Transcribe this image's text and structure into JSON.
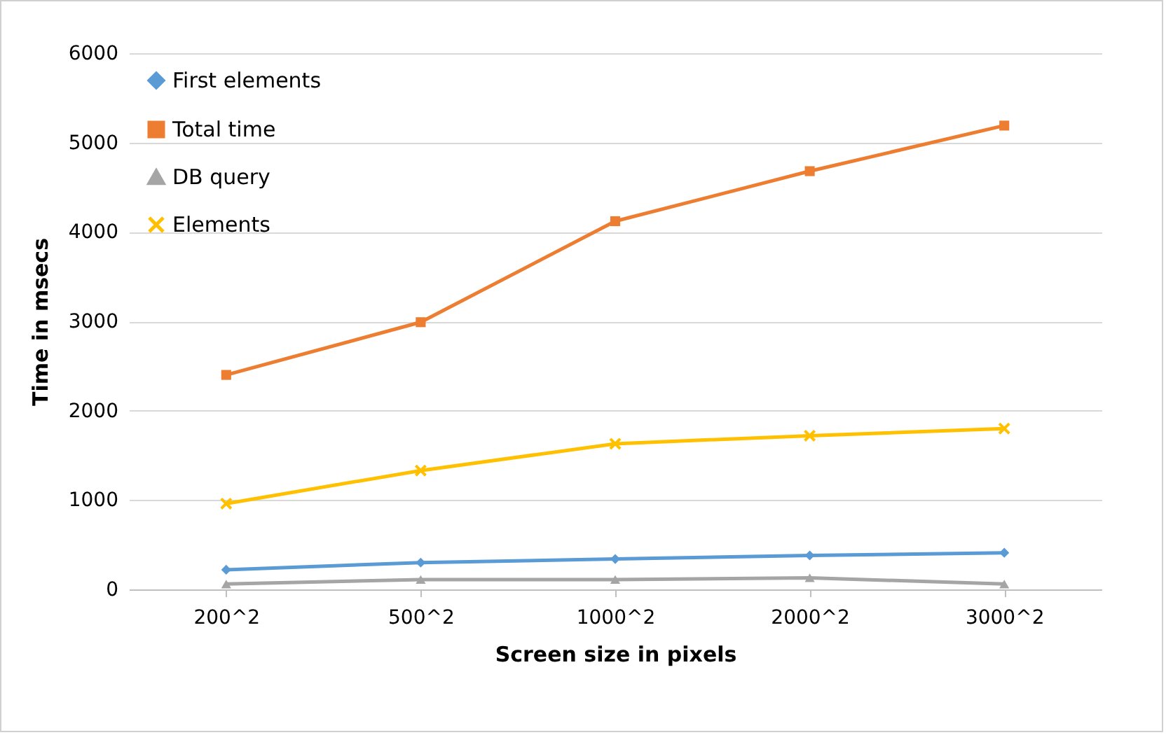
{
  "chart_data": {
    "type": "line",
    "xlabel": "Screen size in pixels",
    "ylabel": "Time in msecs",
    "categories": [
      "200^2",
      "500^2",
      "1000^2",
      "2000^2",
      "3000^2"
    ],
    "series": [
      {
        "name": "First elements",
        "color": "#5b9bd5",
        "marker": "diamond",
        "values": [
          220,
          300,
          340,
          380,
          410
        ]
      },
      {
        "name": "Total time",
        "color": "#ed7d31",
        "marker": "square",
        "values": [
          2400,
          2990,
          4120,
          4680,
          5190
        ]
      },
      {
        "name": "DB query",
        "color": "#a5a5a5",
        "marker": "triangle",
        "values": [
          60,
          110,
          110,
          130,
          60
        ]
      },
      {
        "name": "Elements",
        "color": "#ffc000",
        "marker": "cross",
        "values": [
          960,
          1330,
          1630,
          1720,
          1800
        ]
      }
    ],
    "ylim": [
      0,
      6000
    ],
    "yticks": [
      0,
      1000,
      2000,
      3000,
      4000,
      5000,
      6000
    ],
    "grid": "y",
    "legend": "top left"
  }
}
